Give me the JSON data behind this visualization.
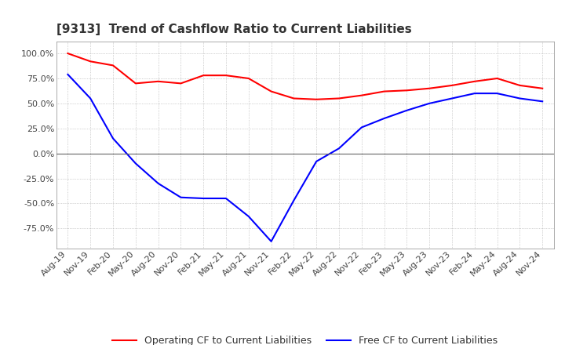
{
  "title": "[9313]  Trend of Cashflow Ratio to Current Liabilities",
  "x_labels": [
    "Aug-19",
    "Nov-19",
    "Feb-20",
    "May-20",
    "Aug-20",
    "Nov-20",
    "Feb-21",
    "May-21",
    "Aug-21",
    "Nov-21",
    "Feb-22",
    "May-22",
    "Aug-22",
    "Nov-22",
    "Feb-23",
    "May-23",
    "Aug-23",
    "Nov-23",
    "Feb-24",
    "May-24",
    "Aug-24",
    "Nov-24"
  ],
  "operating_cf": [
    100.0,
    92.0,
    88.0,
    70.0,
    72.0,
    70.0,
    78.0,
    78.0,
    75.0,
    62.0,
    55.0,
    54.0,
    55.0,
    58.0,
    62.0,
    63.0,
    65.0,
    68.0,
    72.0,
    75.0,
    68.0,
    65.0
  ],
  "free_cf": [
    79.0,
    55.0,
    15.0,
    -10.0,
    -30.0,
    -44.0,
    -45.0,
    -45.0,
    -63.0,
    -88.0,
    -47.0,
    -8.0,
    5.0,
    26.0,
    35.0,
    43.0,
    50.0,
    55.0,
    60.0,
    60.0,
    55.0,
    52.0
  ],
  "operating_color": "#FF0000",
  "free_color": "#0000FF",
  "background_color": "#FFFFFF",
  "grid_color": "#AAAAAA",
  "ylim": [
    -95.0,
    112.0
  ],
  "yticks": [
    -75.0,
    -50.0,
    -25.0,
    0.0,
    25.0,
    50.0,
    75.0,
    100.0
  ],
  "legend_labels": [
    "Operating CF to Current Liabilities",
    "Free CF to Current Liabilities"
  ],
  "title_fontsize": 11,
  "tick_fontsize": 8,
  "legend_fontsize": 9
}
